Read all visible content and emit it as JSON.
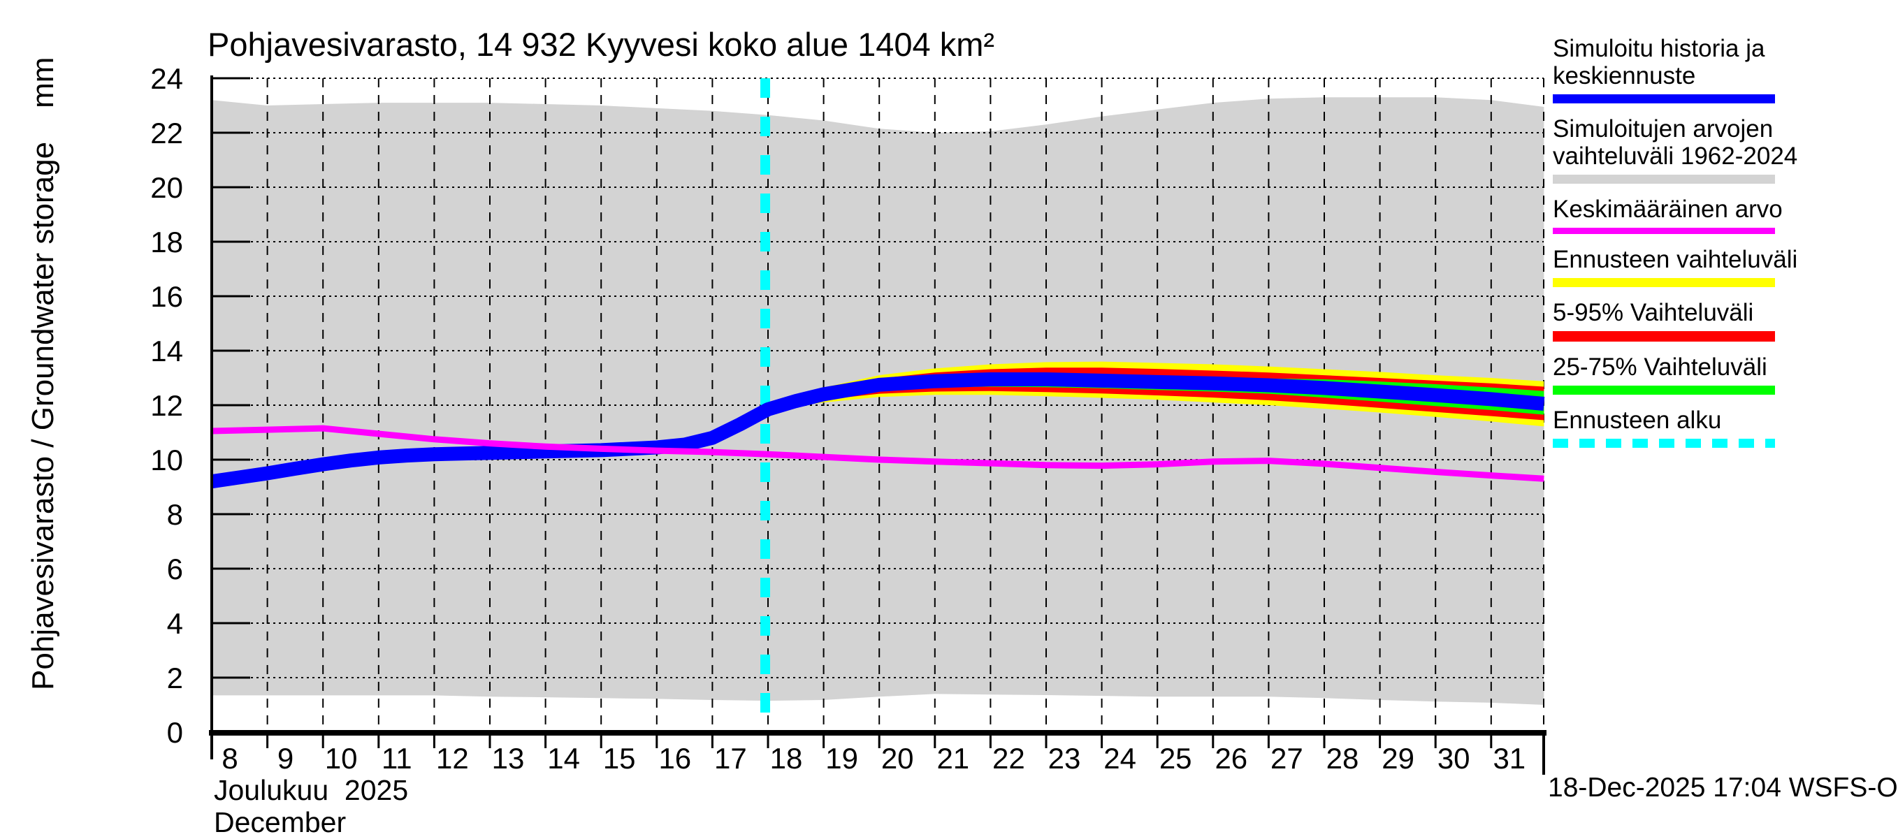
{
  "title": "Pohjavesivarasto, 14 932 Kyyvesi koko alue 1404 km²",
  "y_axis": {
    "label": "Pohjavesivarasto / Groundwater storage",
    "unit": "mm",
    "min": 0,
    "max": 24,
    "tick_step": 2
  },
  "x_axis": {
    "month_fi": "Joulukuu",
    "year": "2025",
    "month_en": "December",
    "first_day": 8,
    "last_day": 31
  },
  "footer": {
    "timestamp": "18-Dec-2025 17:04 WSFS-O"
  },
  "legend": {
    "items": [
      {
        "label": "Simuloitu historia ja keskiennuste",
        "color": "#0000ff",
        "swatch": "bar"
      },
      {
        "label": "Simuloitujen arvojen vaihteluväli 1962-2024",
        "color": "#d3d3d3",
        "swatch": "bar"
      },
      {
        "label": "Keskimääräinen arvo",
        "color": "#ff00ff",
        "swatch": "line"
      },
      {
        "label": "Ennusteen vaihteluväli",
        "color": "#ffff00",
        "swatch": "bar"
      },
      {
        "label": "5-95% Vaihteluväli",
        "color": "#ff0000",
        "swatch": "thick"
      },
      {
        "label": "25-75% Vaihteluväli",
        "color": "#00ff00",
        "swatch": "bar"
      },
      {
        "label": "Ennusteen alku",
        "color": "#00ffff",
        "swatch": "dashed"
      }
    ]
  },
  "chart_data": {
    "type": "line",
    "title": "Pohjavesivarasto, 14 932 Kyyvesi koko alue 1404 km²",
    "ylabel": "Pohjavesivarasto / Groundwater storage (mm)",
    "xlabel": "Joulukuu 2025 / December",
    "ylim": [
      0,
      24
    ],
    "xlim": [
      8,
      31.95
    ],
    "y_ticks": [
      0,
      2,
      4,
      6,
      8,
      10,
      12,
      14,
      16,
      18,
      20,
      22,
      24
    ],
    "x_ticks": [
      8,
      9,
      10,
      11,
      12,
      13,
      14,
      15,
      16,
      17,
      18,
      19,
      20,
      21,
      22,
      23,
      24,
      25,
      26,
      27,
      28,
      29,
      30,
      31
    ],
    "grid": true,
    "legend_position": "right",
    "forecast_start_day": 17.95,
    "bands": [
      {
        "name": "Simuloitujen arvojen vaihteluväli 1962-2024",
        "color": "#d3d3d3",
        "x": [
          8,
          9,
          10,
          11,
          12,
          13,
          14,
          15,
          16,
          17,
          18,
          19,
          20,
          21,
          22,
          23,
          24,
          25,
          26,
          27,
          28,
          29,
          30,
          31,
          31.95
        ],
        "top": [
          23.2,
          23.0,
          23.05,
          23.1,
          23.1,
          23.1,
          23.05,
          23.0,
          22.9,
          22.8,
          22.65,
          22.45,
          22.15,
          22.0,
          22.05,
          22.3,
          22.6,
          22.85,
          23.1,
          23.25,
          23.3,
          23.3,
          23.3,
          23.2,
          22.95
        ],
        "bottom": [
          1.35,
          1.35,
          1.35,
          1.35,
          1.35,
          1.3,
          1.28,
          1.25,
          1.22,
          1.18,
          1.15,
          1.18,
          1.3,
          1.4,
          1.38,
          1.36,
          1.33,
          1.3,
          1.3,
          1.3,
          1.25,
          1.18,
          1.12,
          1.08,
          1.0
        ]
      },
      {
        "name": "Ennusteen vaihteluväli",
        "color": "#ffff00",
        "x": [
          17.95,
          19,
          20,
          21,
          22,
          23,
          24,
          25,
          26,
          27,
          28,
          29,
          30,
          31,
          31.95
        ],
        "top": [
          11.9,
          12.65,
          13.1,
          13.35,
          13.5,
          13.58,
          13.6,
          13.55,
          13.5,
          13.42,
          13.32,
          13.22,
          13.1,
          13.0,
          12.88
        ],
        "bottom": [
          11.8,
          12.1,
          12.3,
          12.38,
          12.38,
          12.33,
          12.27,
          12.2,
          12.1,
          12.0,
          11.87,
          11.73,
          11.57,
          11.4,
          11.22
        ]
      },
      {
        "name": "5-95% Vaihteluväli",
        "color": "#ff0000",
        "x": [
          17.95,
          19,
          20,
          21,
          22,
          23,
          24,
          25,
          26,
          27,
          28,
          29,
          30,
          31,
          31.95
        ],
        "top": [
          11.89,
          12.55,
          12.98,
          13.2,
          13.32,
          13.38,
          13.38,
          13.33,
          13.27,
          13.2,
          13.1,
          13.0,
          12.9,
          12.8,
          12.68
        ],
        "bottom": [
          11.81,
          12.2,
          12.42,
          12.5,
          12.52,
          12.48,
          12.43,
          12.36,
          12.28,
          12.18,
          12.05,
          11.9,
          11.75,
          11.6,
          11.45
        ]
      },
      {
        "name": "25-75% Vaihteluväli",
        "color": "#00ff00",
        "x": [
          17.95,
          19,
          20,
          21,
          22,
          23,
          24,
          25,
          26,
          27,
          28,
          29,
          30,
          31,
          31.95
        ],
        "top": [
          11.88,
          12.5,
          12.85,
          13.0,
          13.08,
          13.1,
          13.08,
          13.05,
          13.02,
          12.98,
          12.95,
          12.87,
          12.77,
          12.65,
          12.52
        ],
        "bottom": [
          11.82,
          12.28,
          12.55,
          12.66,
          12.68,
          12.66,
          12.62,
          12.56,
          12.5,
          12.42,
          12.28,
          12.13,
          11.97,
          11.82,
          11.65
        ]
      }
    ],
    "series": [
      {
        "name": "Simuloitu historia ja keskiennuste",
        "color": "#0000ff",
        "width": 20,
        "x": [
          8,
          8.5,
          9,
          9.5,
          10,
          10.5,
          11,
          11.5,
          12,
          13,
          14,
          15,
          16,
          16.5,
          17,
          17.5,
          18,
          18.5,
          19,
          20,
          21,
          22,
          23,
          24,
          25,
          26,
          27,
          28,
          29,
          30,
          31,
          31.95
        ],
        "y": [
          9.2,
          9.35,
          9.5,
          9.67,
          9.83,
          9.97,
          10.08,
          10.15,
          10.2,
          10.25,
          10.3,
          10.35,
          10.45,
          10.55,
          10.8,
          11.3,
          11.85,
          12.15,
          12.4,
          12.75,
          12.88,
          12.95,
          12.95,
          12.9,
          12.85,
          12.8,
          12.73,
          12.63,
          12.5,
          12.37,
          12.22,
          12.05
        ]
      },
      {
        "name": "Keskimääräinen arvo",
        "color": "#ff00ff",
        "width": 9,
        "x": [
          8,
          9,
          10,
          11,
          12,
          13,
          14,
          15,
          16,
          17,
          18,
          19,
          20,
          21,
          22,
          23,
          24,
          25,
          26,
          27,
          28,
          29,
          30,
          31,
          31.95
        ],
        "y": [
          11.05,
          11.1,
          11.15,
          10.95,
          10.75,
          10.6,
          10.48,
          10.4,
          10.33,
          10.28,
          10.2,
          10.1,
          10.0,
          9.93,
          9.87,
          9.8,
          9.78,
          9.83,
          9.93,
          9.96,
          9.85,
          9.7,
          9.55,
          9.42,
          9.3
        ]
      }
    ]
  }
}
